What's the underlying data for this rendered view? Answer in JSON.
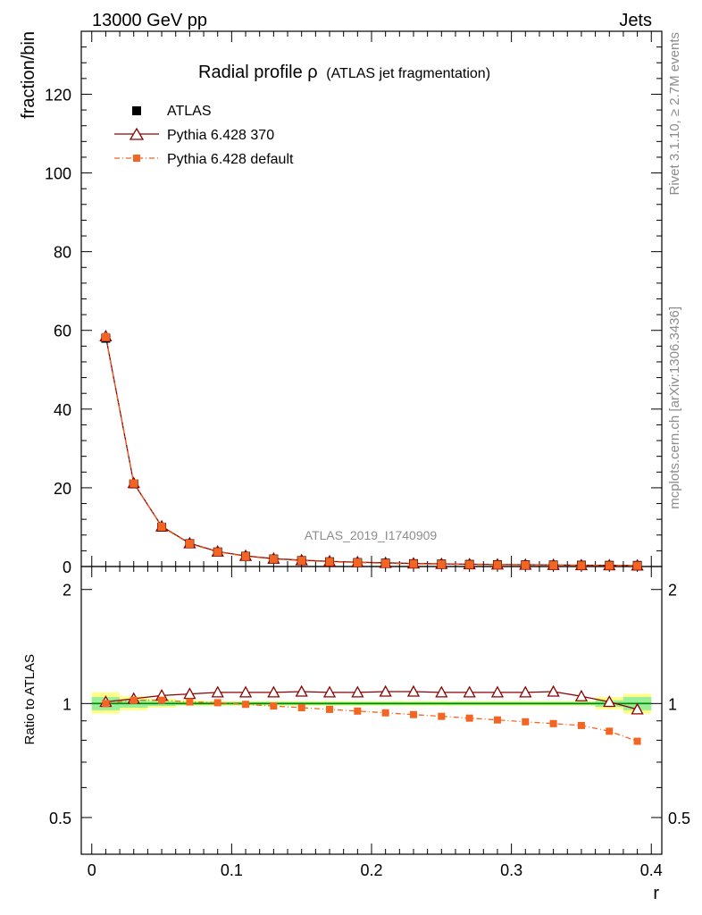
{
  "header": {
    "left": "13000 GeV pp",
    "right": "Jets"
  },
  "side": {
    "rivet": "Rivet 3.1.10, ≥ 2.7M events",
    "mcplots": "mcplots.cern.ch [arXiv:1306.3436]"
  },
  "title": {
    "main": "Radial profile ρ",
    "sub": "(ATLAS jet fragmentation)"
  },
  "watermark": "ATLAS_2019_I1740909",
  "colors": {
    "atlas": "#000000",
    "py370": "#8b0000",
    "pydefault": "#f26522",
    "band_green": "#99ee99",
    "band_yellow": "#ffff88",
    "ref_line": "#008800"
  },
  "chart_data": {
    "type": "scatter",
    "x": [
      0.01,
      0.03,
      0.05,
      0.07,
      0.09,
      0.11,
      0.13,
      0.15,
      0.17,
      0.19,
      0.21,
      0.23,
      0.25,
      0.27,
      0.29,
      0.31,
      0.33,
      0.35,
      0.37,
      0.39
    ],
    "xlabel": "r",
    "ylabel_main": "fraction/bin",
    "ylabel_ratio": "Ratio to ATLAS",
    "xlim": [
      -0.0075,
      0.4075
    ],
    "ylim_main": [
      0,
      136
    ],
    "ylim_ratio": [
      0.4,
      2.3
    ],
    "ratio_log_scale": true,
    "xticks": [
      "0",
      "0.1",
      "0.2",
      "0.3",
      "0.4"
    ],
    "yticks_main": [
      "0",
      "20",
      "40",
      "60",
      "80",
      "100",
      "120"
    ],
    "yticks_ratio": [
      "0.5",
      "1",
      "2"
    ],
    "legend_position": "top-left",
    "series": [
      {
        "name": "ATLAS",
        "marker": "filled-square",
        "values": [
          58.0,
          21.0,
          10.0,
          5.8,
          3.7,
          2.6,
          1.9,
          1.5,
          1.2,
          1.0,
          0.85,
          0.72,
          0.62,
          0.54,
          0.47,
          0.42,
          0.37,
          0.33,
          0.3,
          0.27
        ]
      },
      {
        "name": "Pythia 6.428 370",
        "marker": "open-triangle",
        "values": [
          58.5,
          21.2,
          10.2,
          5.9,
          3.8,
          2.7,
          2.0,
          1.6,
          1.3,
          1.1,
          0.92,
          0.78,
          0.67,
          0.58,
          0.51,
          0.45,
          0.4,
          0.34,
          0.31,
          0.26
        ],
        "ratio": [
          1.01,
          1.03,
          1.05,
          1.06,
          1.07,
          1.07,
          1.07,
          1.075,
          1.07,
          1.07,
          1.075,
          1.075,
          1.07,
          1.07,
          1.07,
          1.07,
          1.075,
          1.045,
          1.01,
          0.965
        ]
      },
      {
        "name": "Pythia 6.428 default",
        "marker": "filled-square",
        "values": [
          58.3,
          21.1,
          10.1,
          5.8,
          3.7,
          2.6,
          1.9,
          1.5,
          1.2,
          1.0,
          0.8,
          0.68,
          0.57,
          0.49,
          0.42,
          0.37,
          0.32,
          0.28,
          0.25,
          0.21
        ],
        "ratio": [
          1.0,
          1.02,
          1.02,
          1.01,
          1.005,
          0.995,
          0.985,
          0.975,
          0.965,
          0.955,
          0.945,
          0.935,
          0.925,
          0.915,
          0.905,
          0.895,
          0.885,
          0.875,
          0.845,
          0.795
        ]
      }
    ],
    "uncertainty_band": {
      "green": [
        [
          0.96,
          1.04
        ],
        [
          0.975,
          1.025
        ],
        [
          0.985,
          1.015
        ],
        [
          0.99,
          1.01
        ],
        [
          0.99,
          1.01
        ],
        [
          0.99,
          1.01
        ],
        [
          0.99,
          1.01
        ],
        [
          0.99,
          1.01
        ],
        [
          0.99,
          1.01
        ],
        [
          0.99,
          1.01
        ],
        [
          0.99,
          1.01
        ],
        [
          0.99,
          1.01
        ],
        [
          0.99,
          1.01
        ],
        [
          0.99,
          1.01
        ],
        [
          0.99,
          1.01
        ],
        [
          0.99,
          1.01
        ],
        [
          0.99,
          1.01
        ],
        [
          0.99,
          1.01
        ],
        [
          0.98,
          1.02
        ],
        [
          0.96,
          1.04
        ]
      ],
      "yellow": [
        [
          0.94,
          1.07
        ],
        [
          0.96,
          1.045
        ],
        [
          0.975,
          1.03
        ],
        [
          0.985,
          1.02
        ],
        [
          0.985,
          1.015
        ],
        [
          0.985,
          1.015
        ],
        [
          0.985,
          1.015
        ],
        [
          0.985,
          1.015
        ],
        [
          0.985,
          1.015
        ],
        [
          0.985,
          1.015
        ],
        [
          0.985,
          1.015
        ],
        [
          0.985,
          1.015
        ],
        [
          0.985,
          1.015
        ],
        [
          0.985,
          1.015
        ],
        [
          0.985,
          1.015
        ],
        [
          0.985,
          1.015
        ],
        [
          0.985,
          1.015
        ],
        [
          0.985,
          1.015
        ],
        [
          0.965,
          1.04
        ],
        [
          0.94,
          1.06
        ]
      ]
    }
  }
}
